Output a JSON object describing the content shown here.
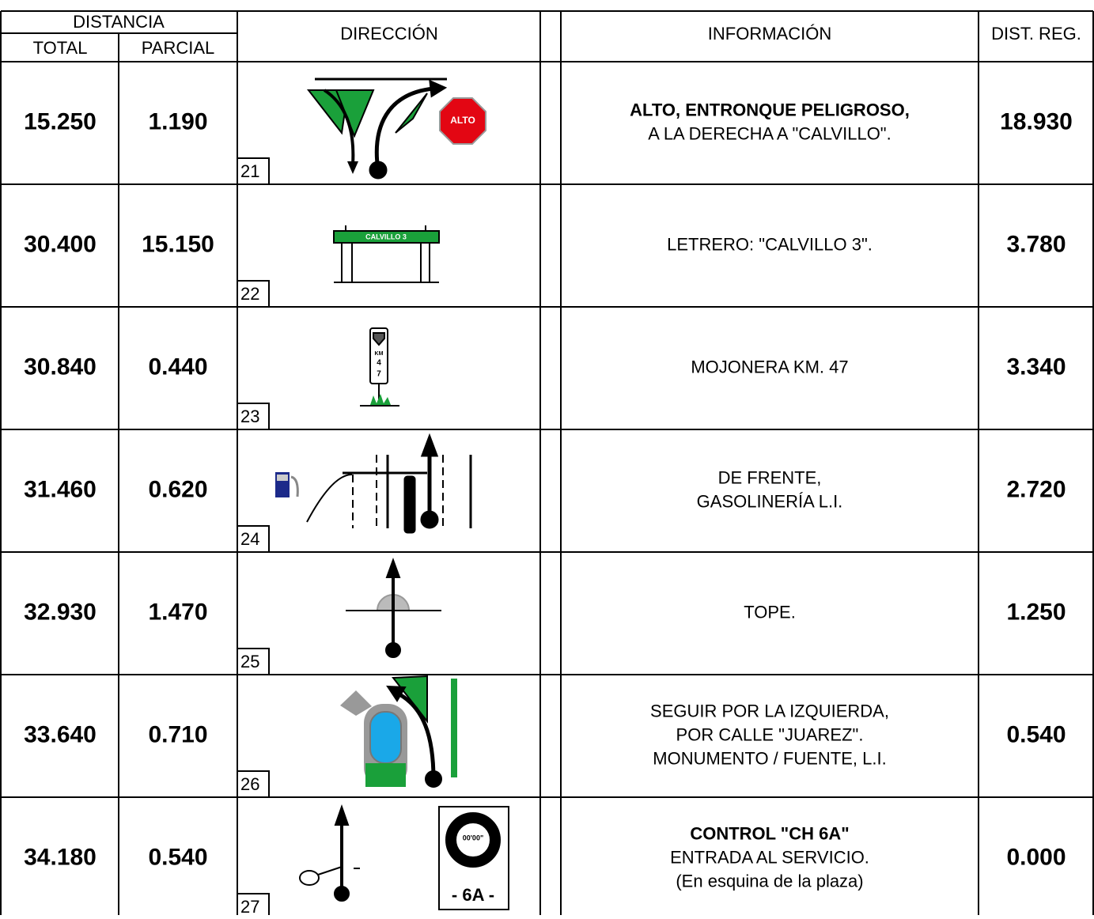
{
  "header": {
    "distance": "DISTANCIA",
    "total": "TOTAL",
    "partial": "PARCIAL",
    "direction": "DIRECCIÓN",
    "information": "INFORMACIÓN",
    "dist_reg": "DIST. REG."
  },
  "rows": [
    {
      "total": "15.250",
      "partial": "1.190",
      "number": "21",
      "info": [
        "ALTO, ENTRONQUE PELIGROSO,",
        "A LA DERECHA A \"CALVILLO\"."
      ],
      "bold_lines": 1,
      "dist_reg": "18.930",
      "sign": [
        "ALTO"
      ]
    },
    {
      "total": "30.400",
      "partial": "15.150",
      "number": "22",
      "info": [
        "LETRERO: \"CALVILLO 3\"."
      ],
      "bold_lines": 0,
      "dist_reg": "3.780",
      "sign": [
        "CALVILLO 3"
      ]
    },
    {
      "total": "30.840",
      "partial": "0.440",
      "number": "23",
      "info": [
        "MOJONERA KM. 47"
      ],
      "bold_lines": 0,
      "dist_reg": "3.340",
      "sign": [
        "KM",
        "4",
        "7"
      ]
    },
    {
      "total": "31.460",
      "partial": "0.620",
      "number": "24",
      "info": [
        "DE FRENTE,",
        "GASOLINERÍA L.I."
      ],
      "bold_lines": 0,
      "dist_reg": "2.720"
    },
    {
      "total": "32.930",
      "partial": "1.470",
      "number": "25",
      "info": [
        "TOPE."
      ],
      "bold_lines": 0,
      "dist_reg": "1.250"
    },
    {
      "total": "33.640",
      "partial": "0.710",
      "number": "26",
      "info": [
        "SEGUIR POR LA IZQUIERDA,",
        "POR CALLE \"JUAREZ\".",
        "MONUMENTO / FUENTE, L.I."
      ],
      "bold_lines": 0,
      "dist_reg": "0.540"
    },
    {
      "total": "34.180",
      "partial": "0.540",
      "number": "27",
      "info": [
        "CONTROL \"CH 6A\"",
        "ENTRADA AL SERVICIO.",
        "(En esquina de la plaza)"
      ],
      "bold_lines": 1,
      "dist_reg": "0.000",
      "sign": [
        "00'00\"",
        "- 6A -"
      ]
    }
  ]
}
